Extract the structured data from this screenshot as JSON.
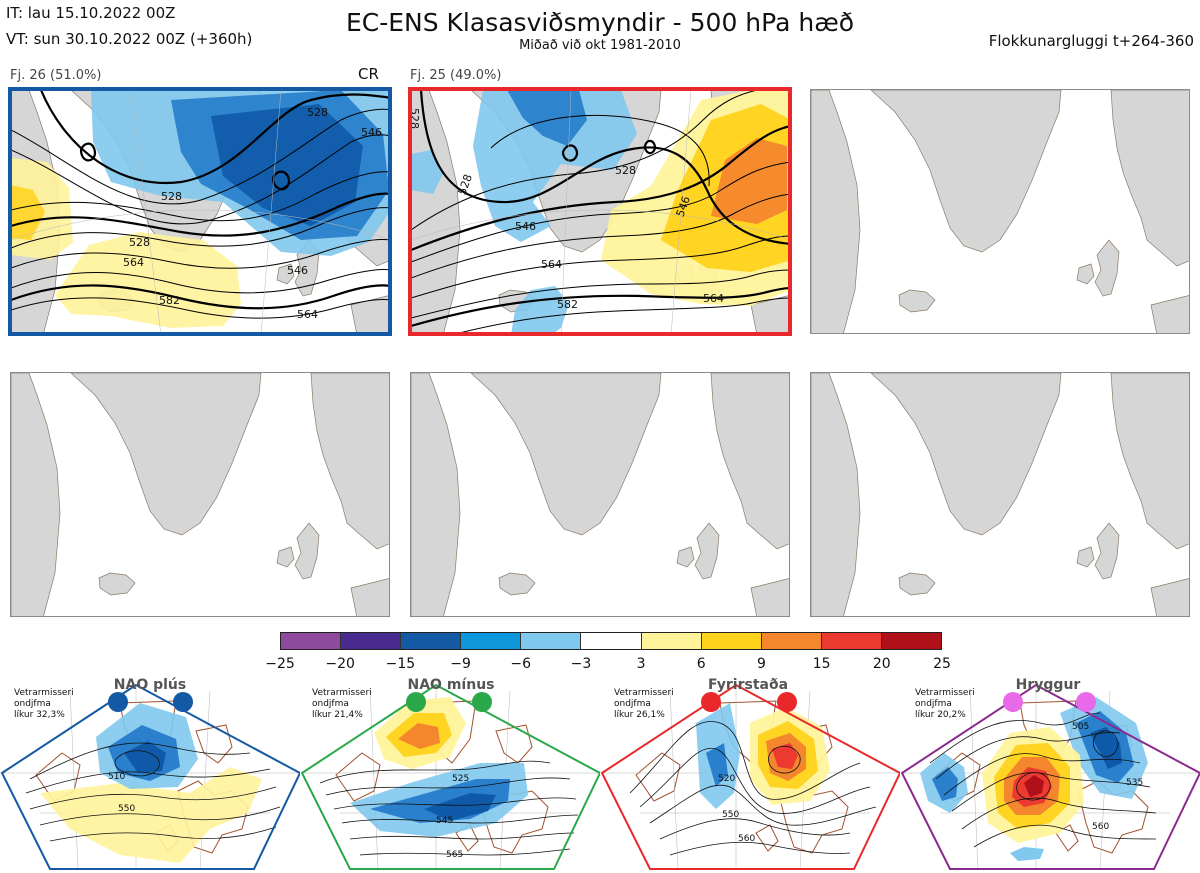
{
  "header": {
    "init_time": "IT: lau 15.10.2022 00Z",
    "valid_time": "VT: sun 30.10.2022 00Z  (+360h)",
    "title": "EC-ENS Klasasviðsmyndir - 500 hPa hæð",
    "subtitle": "Miðað við okt 1981-2010",
    "window": "Flokkunargluggi t+264-360"
  },
  "clusters": [
    {
      "label": "Fj. 26 (51.0%)",
      "members": 26,
      "percent": 51.0,
      "tag": "CR",
      "frame_color": "#1459a3",
      "contour_labels": [
        "528",
        "546",
        "528",
        "564",
        "546",
        "582",
        "564",
        "528"
      ]
    },
    {
      "label": "Fj. 25 (49.0%)",
      "members": 25,
      "percent": 49.0,
      "frame_color": "#e8282b",
      "contour_labels": [
        "528",
        "528",
        "546",
        "546",
        "564",
        "582",
        "564",
        "528"
      ]
    }
  ],
  "colorbar": {
    "ticks": [
      "−25",
      "−20",
      "−15",
      "−9",
      "−6",
      "−3",
      "3",
      "6",
      "9",
      "15",
      "20",
      "25"
    ],
    "colors": [
      "#8e4a9c",
      "#4a2c91",
      "#1459a3",
      "#0f97dc",
      "#7fc8ee",
      "#ffffff",
      "#fff39a",
      "#ffd21c",
      "#f4872e",
      "#ec3a30",
      "#b01018"
    ]
  },
  "regimes": [
    {
      "name": "NAO plús",
      "note": "Vetrarmisseri\nondjfma\nlíkur 32,3%",
      "color": "#1459a3",
      "contour_labels": [
        "510",
        "550"
      ]
    },
    {
      "name": "NAO mínus",
      "note": "Vetrarmisseri\nondjfma\nlíkur 21,4%",
      "color": "#2aa84a",
      "contour_labels": [
        "525",
        "545",
        "565"
      ]
    },
    {
      "name": "Fyrirstaða",
      "note": "Vetrarmisseri\nondjfma\nlíkur 26,1%",
      "color": "#e8282b",
      "contour_labels": [
        "520",
        "550",
        "560"
      ]
    },
    {
      "name": "Hryggur",
      "note": "Vetrarmisseri\nondjfma\nlíkur 20,2%",
      "color": "#8a2a8e",
      "dot_color": "#e86ae8",
      "contour_labels": [
        "505",
        "535",
        "560"
      ]
    }
  ]
}
